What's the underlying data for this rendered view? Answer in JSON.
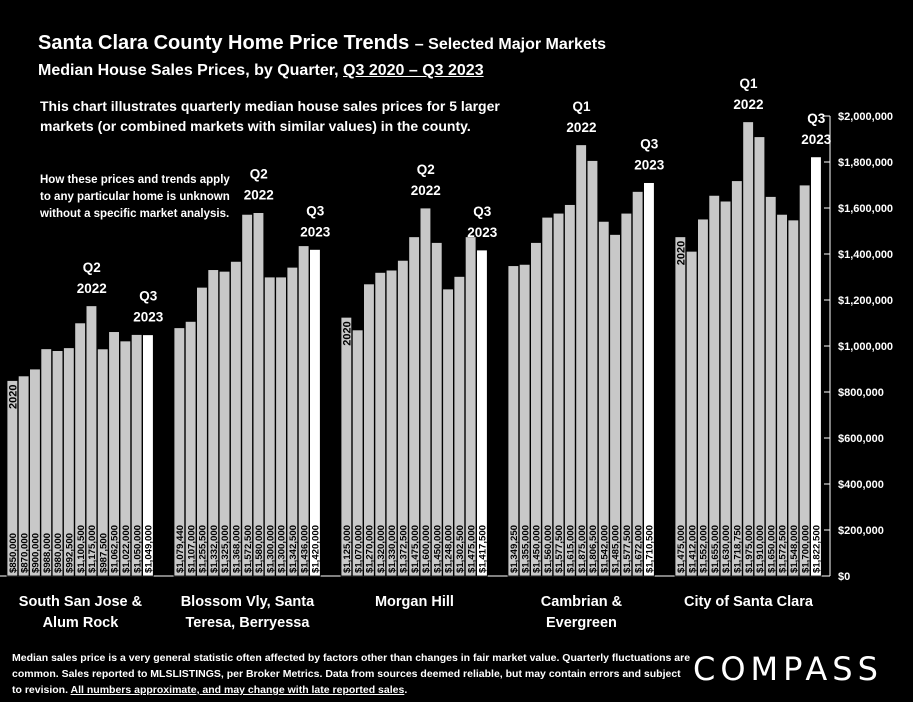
{
  "header": {
    "title": "Santa Clara County Home Price Trends",
    "title_suffix": "– Selected Major Markets",
    "subtitle_prefix": "Median House Sales Prices, by Quarter,",
    "subtitle_range": "Q3 2020 – Q3 2023"
  },
  "intro_text": "This chart illustrates quarterly median house sales prices for 5 larger markets (or combined markets with similar values) in the county.",
  "note_text": "How these prices and trends apply to any particular home is unknown without a specific market analysis.",
  "footer": {
    "text": "Median sales price is a very general statistic often affected by factors other than changes in fair market value. Quarterly fluctuations are common. Sales reported to MLSLISTINGS, per Broker Metrics. Data from sources deemed reliable, but may contain errors and subject to revision.",
    "underlined": "All numbers approximate, and may change with late reported sales",
    "end": "."
  },
  "logo": "COMPASS",
  "colors": {
    "background": "#000000",
    "bar": "#c8c8c8",
    "bar_latest": "#ffffff",
    "text": "#ffffff"
  },
  "chart_data": {
    "type": "bar",
    "y_axis_ticks": [
      "$0",
      "$200,000",
      "$400,000",
      "$600,000",
      "$800,000",
      "$1,000,000",
      "$1,200,000",
      "$1,400,000",
      "$1,600,000",
      "$1,800,000",
      "$2,000,000"
    ],
    "ylim": [
      0,
      2000000
    ],
    "y_axis_position": "right",
    "grid": false,
    "year_label": "2020",
    "groups": [
      {
        "label": [
          "South San Jose &",
          "Alum Rock"
        ],
        "values": [
          850000,
          870000,
          900000,
          988000,
          980000,
          992500,
          1100500,
          1175000,
          987500,
          1062500,
          1022000,
          1050000,
          1049000
        ],
        "labels": [
          "$850,000",
          "$870,000",
          "$900,000",
          "$988,000",
          "$980,000",
          "$992,500",
          "$1,100,500",
          "$1,175,000",
          "$987,500",
          "$1,062,500",
          "$1,022,000",
          "$1,050,000",
          "$1,049,000"
        ],
        "annotations": [
          {
            "index": 7,
            "text": [
              "Q2",
              "2022"
            ]
          },
          {
            "index": 12,
            "text": [
              "Q3",
              "2023"
            ]
          }
        ],
        "show_year_label": false
      },
      {
        "label": [
          "Blossom Vly, Santa",
          "Teresa, Berryessa"
        ],
        "values": [
          1079440,
          1107000,
          1255500,
          1332000,
          1325000,
          1368000,
          1572500,
          1580000,
          1300000,
          1300000,
          1342500,
          1436000,
          1420000
        ],
        "labels": [
          "$1,079,440",
          "$1,107,000",
          "$1,255,500",
          "$1,332,000",
          "$1,325,000",
          "$1,368,000",
          "$1,572,500",
          "$1,580,000",
          "$1,300,000",
          "$1,300,000",
          "$1,342,500",
          "$1,436,000",
          "$1,420,000"
        ],
        "annotations": [
          {
            "index": 7,
            "text": [
              "Q2",
              "2022"
            ]
          },
          {
            "index": 12,
            "text": [
              "Q3",
              "2023"
            ]
          }
        ],
        "show_year_label": false
      },
      {
        "label": [
          "Morgan Hill"
        ],
        "values": [
          1125000,
          1070000,
          1270000,
          1320000,
          1330000,
          1372500,
          1475000,
          1600000,
          1450000,
          1248000,
          1302500,
          1475000,
          1417500
        ],
        "labels": [
          "$1,125,000",
          "$1,070,000",
          "$1,270,000",
          "$1,320,000",
          "$1,330,000",
          "$1,372,500",
          "$1,475,000",
          "$1,600,000",
          "$1,450,000",
          "$1,248,000",
          "$1,302,500",
          "$1,475,000",
          "$1,417,500"
        ],
        "annotations": [
          {
            "index": 7,
            "text": [
              "Q2",
              "2022"
            ]
          },
          {
            "index": 12,
            "text": [
              "Q3",
              "2023"
            ]
          }
        ],
        "show_year_label": true
      },
      {
        "label": [
          "Cambrian &",
          "Evergreen"
        ],
        "values": [
          1349250,
          1355000,
          1450000,
          1560000,
          1577500,
          1615000,
          1875000,
          1806500,
          1542000,
          1485000,
          1577500,
          1672000,
          1710500
        ],
        "labels": [
          "$1,349,250",
          "$1,355,000",
          "$1,450,000",
          "$1,560,000",
          "$1,577,500",
          "$1,615,000",
          "$1,875,000",
          "$1,806,500",
          "$1,542,000",
          "$1,485,000",
          "$1,577,500",
          "$1,672,000",
          "$1,710,500"
        ],
        "annotations": [
          {
            "index": 6,
            "text": [
              "Q1",
              "2022"
            ]
          },
          {
            "index": 12,
            "text": [
              "Q3",
              "2023"
            ]
          }
        ],
        "show_year_label": false
      },
      {
        "label": [
          "City of Santa Clara"
        ],
        "values": [
          1475000,
          1412000,
          1552000,
          1655000,
          1630000,
          1718750,
          1975000,
          1910000,
          1650000,
          1572500,
          1548000,
          1700000,
          1822500
        ],
        "labels": [
          "$1,475,000",
          "$1,412,000",
          "$1,552,000",
          "$1,655,000",
          "$1,630,000",
          "$1,718,750",
          "$1,975,000",
          "$1,910,000",
          "$1,650,000",
          "$1,572,500",
          "$1,548,000",
          "$1,700,000",
          "$1,822,500"
        ],
        "annotations": [
          {
            "index": 6,
            "text": [
              "Q1",
              "2022"
            ]
          },
          {
            "index": 12,
            "text": [
              "Q3",
              "2023"
            ]
          }
        ],
        "show_year_label": true
      }
    ]
  }
}
